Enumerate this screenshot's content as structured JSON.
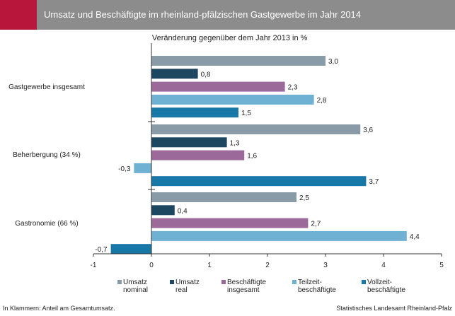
{
  "header": {
    "title": "Umsatz und Beschäftigte im rheinland-pfälzischen Gastgewerbe im Jahr 2014",
    "accent_color": "#b8173b",
    "bar_color": "#8c8c8c"
  },
  "footer": {
    "note": "In Klammern: Anteil am Gesamtumsatz.",
    "source": "Statistisches Landesamt Rheinland-Pfalz"
  },
  "chart_data": {
    "type": "bar",
    "orientation": "horizontal",
    "title": "Veränderung gegenüber dem Jahr 2013 in %",
    "categories": [
      "Gastgewerbe insgesamt",
      "Beherbergung (34 %)",
      "Gastronomie (66 %)"
    ],
    "series": [
      {
        "name": "Umsatz nominal",
        "legend_lines": [
          "Umsatz",
          "nominal"
        ],
        "color": "#8a9ba8",
        "values": [
          3.0,
          3.6,
          2.5
        ]
      },
      {
        "name": "Umsatz real",
        "legend_lines": [
          "Umsatz",
          "real"
        ],
        "color": "#1d4760",
        "values": [
          0.8,
          1.3,
          0.4
        ]
      },
      {
        "name": "Beschäftigte insgesamt",
        "legend_lines": [
          "Beschäftigte",
          "insgesamt"
        ],
        "color": "#9b6a9b",
        "values": [
          2.3,
          1.6,
          2.7
        ]
      },
      {
        "name": "Teilzeitbeschäftigte",
        "legend_lines": [
          "Teilzeit-",
          "beschäftigte"
        ],
        "color": "#6fb1d3",
        "values": [
          2.8,
          -0.3,
          4.4
        ]
      },
      {
        "name": "Vollzeitbeschäftigte",
        "legend_lines": [
          "Vollzeit-",
          "beschäftigte"
        ],
        "color": "#1778a8",
        "values": [
          1.5,
          3.7,
          -0.7
        ]
      }
    ],
    "value_labels": [
      [
        "3,0",
        "3,6",
        "2,5"
      ],
      [
        "0,8",
        "1,3",
        "0,4"
      ],
      [
        "2,3",
        "1,6",
        "2,7"
      ],
      [
        "2,8",
        "-0,3",
        "4,4"
      ],
      [
        "1,5",
        "3,7",
        "-0,7"
      ]
    ],
    "xlim": [
      -1,
      5
    ],
    "xticks": [
      -1,
      0,
      1,
      2,
      3,
      4,
      5
    ],
    "xtick_labels": [
      "-1",
      "0",
      "1",
      "2",
      "3",
      "4",
      "5"
    ],
    "grid": false,
    "legend_position": "bottom"
  }
}
